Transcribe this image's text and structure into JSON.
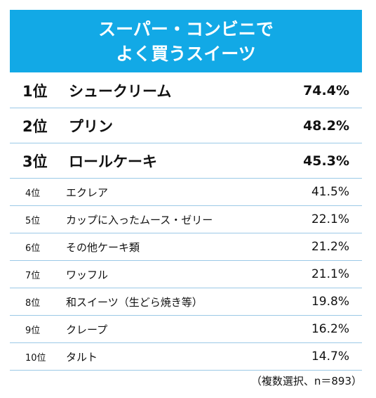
{
  "chart_data": {
    "type": "table",
    "title_line1": "スーパー・コンビニで",
    "title_line2": "よく買うスイーツ",
    "rows": [
      {
        "rank": "1位",
        "name": "シュークリーム",
        "value_label": "74.4%",
        "value": 74.4
      },
      {
        "rank": "2位",
        "name": "プリン",
        "value_label": "48.2%",
        "value": 48.2
      },
      {
        "rank": "3位",
        "name": "ロールケーキ",
        "value_label": "45.3%",
        "value": 45.3
      },
      {
        "rank": "4位",
        "name": "エクレア",
        "value_label": "41.5%",
        "value": 41.5
      },
      {
        "rank": "5位",
        "name": "カップに入ったムース・ゼリー",
        "value_label": "22.1%",
        "value": 22.1
      },
      {
        "rank": "6位",
        "name": "その他ケーキ類",
        "value_label": "21.2%",
        "value": 21.2
      },
      {
        "rank": "7位",
        "name": "ワッフル",
        "value_label": "21.1%",
        "value": 21.1
      },
      {
        "rank": "8位",
        "name": "和スイーツ（生どら焼き等）",
        "value_label": "19.8%",
        "value": 19.8
      },
      {
        "rank": "9位",
        "name": "クレープ",
        "value_label": "16.2%",
        "value": 16.2
      },
      {
        "rank": "10位",
        "name": "タルト",
        "value_label": "14.7%",
        "value": 14.7
      }
    ],
    "note": "（複数選択、n＝893）"
  },
  "colors": {
    "header_bg": "#12a9e6",
    "divider": "#9bc9e6"
  }
}
